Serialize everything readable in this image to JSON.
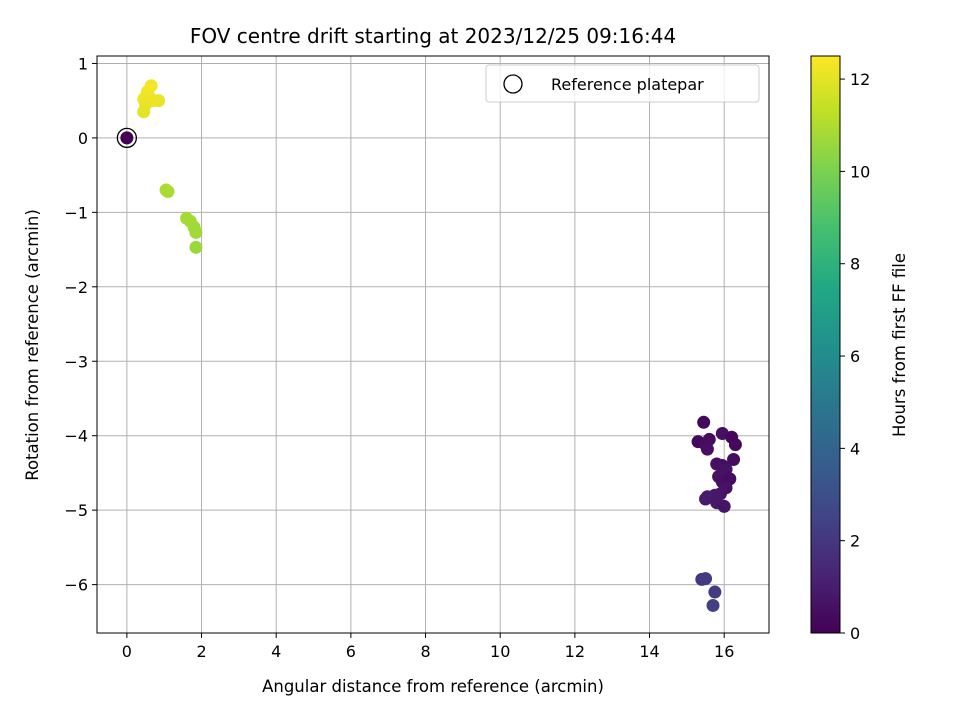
{
  "chart_data": {
    "type": "scatter",
    "title": "FOV centre drift starting at 2023/12/25 09:16:44",
    "xlabel": "Angular distance from reference (arcmin)",
    "ylabel": "Rotation from reference (arcmin)",
    "xlim": [
      -0.8,
      17.2
    ],
    "ylim": [
      -6.65,
      1.1
    ],
    "xticks": [
      0,
      2,
      4,
      6,
      8,
      10,
      12,
      14,
      16
    ],
    "yticks": [
      1,
      0,
      -1,
      -2,
      -3,
      -4,
      -5,
      -6
    ],
    "xtick_labels": [
      "0",
      "2",
      "4",
      "6",
      "8",
      "10",
      "12",
      "14",
      "16"
    ],
    "ytick_labels": [
      "1",
      "0",
      "−1",
      "−2",
      "−3",
      "−4",
      "−5",
      "−6"
    ],
    "grid": true,
    "legend": {
      "position": "upper-right",
      "entries": [
        "Reference platepar"
      ]
    },
    "colorbar": {
      "label": "Hours from first FF file",
      "range": [
        0,
        12.5
      ],
      "ticks": [
        0,
        2,
        4,
        6,
        8,
        10,
        12
      ],
      "tick_labels": [
        "0",
        "2",
        "4",
        "6",
        "8",
        "10",
        "12"
      ],
      "colormap": "viridis"
    },
    "reference": {
      "x": 0,
      "y": 0,
      "label": "Reference platepar"
    },
    "points": [
      {
        "x": 0.0,
        "y": 0.0,
        "t": 0.0
      },
      {
        "x": 15.45,
        "y": -3.82,
        "t": 0.3
      },
      {
        "x": 15.3,
        "y": -4.08,
        "t": 0.3
      },
      {
        "x": 15.5,
        "y": -4.12,
        "t": 0.4
      },
      {
        "x": 15.6,
        "y": -4.05,
        "t": 0.4
      },
      {
        "x": 15.55,
        "y": -4.18,
        "t": 0.5
      },
      {
        "x": 15.95,
        "y": -3.97,
        "t": 0.5
      },
      {
        "x": 16.2,
        "y": -4.02,
        "t": 0.3
      },
      {
        "x": 16.3,
        "y": -4.12,
        "t": 0.3
      },
      {
        "x": 16.25,
        "y": -4.32,
        "t": 0.4
      },
      {
        "x": 15.8,
        "y": -4.38,
        "t": 0.5
      },
      {
        "x": 15.95,
        "y": -4.4,
        "t": 0.5
      },
      {
        "x": 16.05,
        "y": -4.45,
        "t": 0.6
      },
      {
        "x": 15.85,
        "y": -4.55,
        "t": 0.6
      },
      {
        "x": 15.95,
        "y": -4.62,
        "t": 0.5
      },
      {
        "x": 16.15,
        "y": -4.58,
        "t": 0.4
      },
      {
        "x": 16.05,
        "y": -4.7,
        "t": 0.6
      },
      {
        "x": 15.9,
        "y": -4.78,
        "t": 0.7
      },
      {
        "x": 15.75,
        "y": -4.8,
        "t": 0.8
      },
      {
        "x": 15.55,
        "y": -4.82,
        "t": 0.9
      },
      {
        "x": 15.5,
        "y": -4.85,
        "t": 0.9
      },
      {
        "x": 15.8,
        "y": -4.9,
        "t": 0.8
      },
      {
        "x": 16.0,
        "y": -4.95,
        "t": 0.7
      },
      {
        "x": 15.4,
        "y": -5.93,
        "t": 2.0
      },
      {
        "x": 15.5,
        "y": -5.92,
        "t": 2.1
      },
      {
        "x": 15.75,
        "y": -6.1,
        "t": 2.2
      },
      {
        "x": 15.7,
        "y": -6.28,
        "t": 2.3
      },
      {
        "x": 1.05,
        "y": -0.7,
        "t": 10.9
      },
      {
        "x": 1.1,
        "y": -0.72,
        "t": 10.9
      },
      {
        "x": 1.6,
        "y": -1.08,
        "t": 10.8
      },
      {
        "x": 1.7,
        "y": -1.12,
        "t": 10.8
      },
      {
        "x": 1.8,
        "y": -1.2,
        "t": 10.7
      },
      {
        "x": 1.85,
        "y": -1.27,
        "t": 10.7
      },
      {
        "x": 1.85,
        "y": -1.47,
        "t": 10.6
      },
      {
        "x": 0.65,
        "y": 0.7,
        "t": 12.3
      },
      {
        "x": 0.55,
        "y": 0.62,
        "t": 12.3
      },
      {
        "x": 0.45,
        "y": 0.52,
        "t": 12.2
      },
      {
        "x": 0.6,
        "y": 0.55,
        "t": 12.2
      },
      {
        "x": 0.7,
        "y": 0.5,
        "t": 12.2
      },
      {
        "x": 0.85,
        "y": 0.5,
        "t": 12.1
      },
      {
        "x": 0.5,
        "y": 0.45,
        "t": 12.1
      },
      {
        "x": 0.45,
        "y": 0.35,
        "t": 12.0
      }
    ]
  }
}
